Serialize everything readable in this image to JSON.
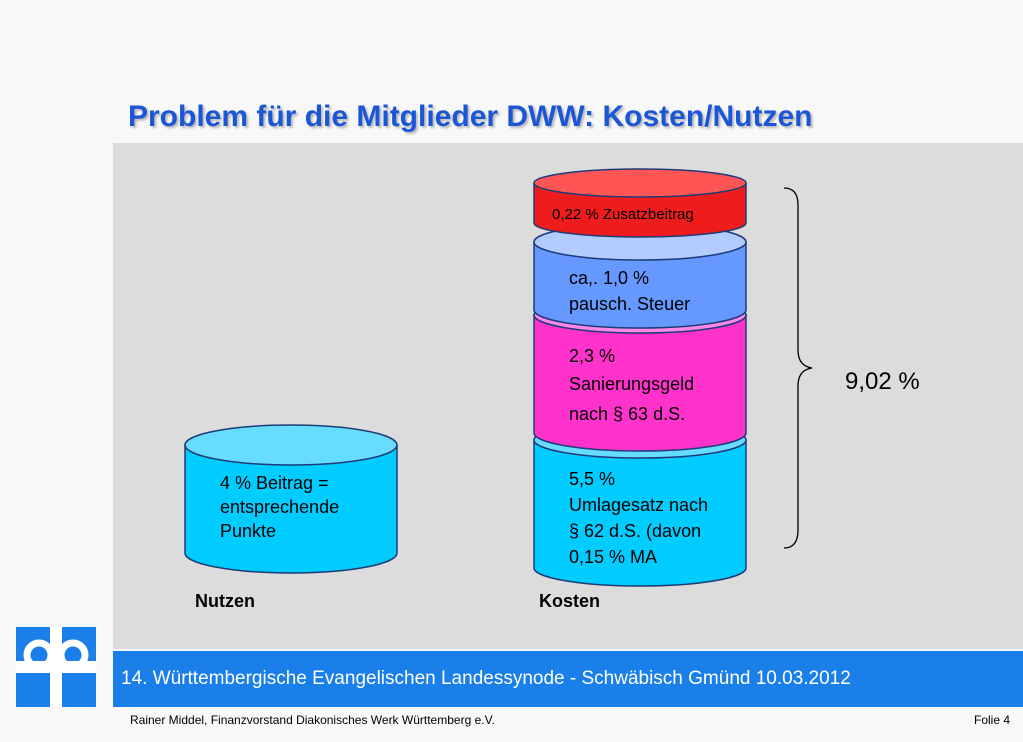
{
  "slide": {
    "title": "Problem für die Mitglieder DWW: Kosten/Nutzen",
    "footer_title": "14. Württembergische Evangelischen Landessynode  - Schwäbisch Gmünd 10.03.2012",
    "byline": "Rainer Middel, Finanzvorstand Diakonisches Werk Württemberg e.V.",
    "slide_number": "Folie 4"
  },
  "nutzen": {
    "label": "Nutzen",
    "cylinder_lines": [
      "4 % Beitrag =",
      "entsprechende",
      "Punkte"
    ]
  },
  "kosten": {
    "label": "Kosten",
    "layers": {
      "zusatz": {
        "lines": [
          "0,22  % Zusatzbeitrag"
        ],
        "color": "#ee1c1c"
      },
      "steuer": {
        "lines": [
          "ca,. 1,0 %",
          "pausch. Steuer"
        ],
        "color": "#6699ff"
      },
      "sanierung": {
        "lines": [
          "2,3 %",
          "Sanierungsgeld",
          "nach § 63 d.S."
        ],
        "color": "#ff33cc"
      },
      "umlage": {
        "lines": [
          "5,5 %",
          "Umlagesatz nach",
          "§ 62 d.S. (davon",
          "0,15 % MA"
        ],
        "color": "#00ccff"
      }
    },
    "total": "9,02 %"
  },
  "logo": {
    "name": "diakonie-logo",
    "color": "#1a7fe8"
  }
}
